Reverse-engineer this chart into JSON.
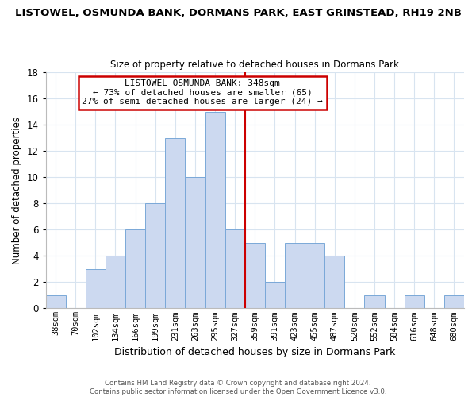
{
  "title": "LISTOWEL, OSMUNDA BANK, DORMANS PARK, EAST GRINSTEAD, RH19 2NB",
  "subtitle": "Size of property relative to detached houses in Dormans Park",
  "xlabel": "Distribution of detached houses by size in Dormans Park",
  "ylabel": "Number of detached properties",
  "bar_labels": [
    "38sqm",
    "70sqm",
    "102sqm",
    "134sqm",
    "166sqm",
    "199sqm",
    "231sqm",
    "263sqm",
    "295sqm",
    "327sqm",
    "359sqm",
    "391sqm",
    "423sqm",
    "455sqm",
    "487sqm",
    "520sqm",
    "552sqm",
    "584sqm",
    "616sqm",
    "648sqm",
    "680sqm"
  ],
  "bar_values": [
    1,
    0,
    3,
    4,
    6,
    8,
    13,
    10,
    15,
    6,
    5,
    2,
    5,
    5,
    4,
    0,
    1,
    0,
    1,
    0,
    1
  ],
  "bar_color": "#ccd9f0",
  "bar_edgecolor": "#7aa8d8",
  "highlight_line_color": "#cc0000",
  "ylim": [
    0,
    18
  ],
  "yticks": [
    0,
    2,
    4,
    6,
    8,
    10,
    12,
    14,
    16,
    18
  ],
  "annotation_title": "LISTOWEL OSMUNDA BANK: 348sqm",
  "annotation_line1": "← 73% of detached houses are smaller (65)",
  "annotation_line2": "27% of semi-detached houses are larger (24) →",
  "annotation_box_color": "#ffffff",
  "annotation_box_edgecolor": "#cc0000",
  "footer_line1": "Contains HM Land Registry data © Crown copyright and database right 2024.",
  "footer_line2": "Contains public sector information licensed under the Open Government Licence v3.0.",
  "background_color": "#ffffff",
  "grid_color": "#d8e4f0"
}
